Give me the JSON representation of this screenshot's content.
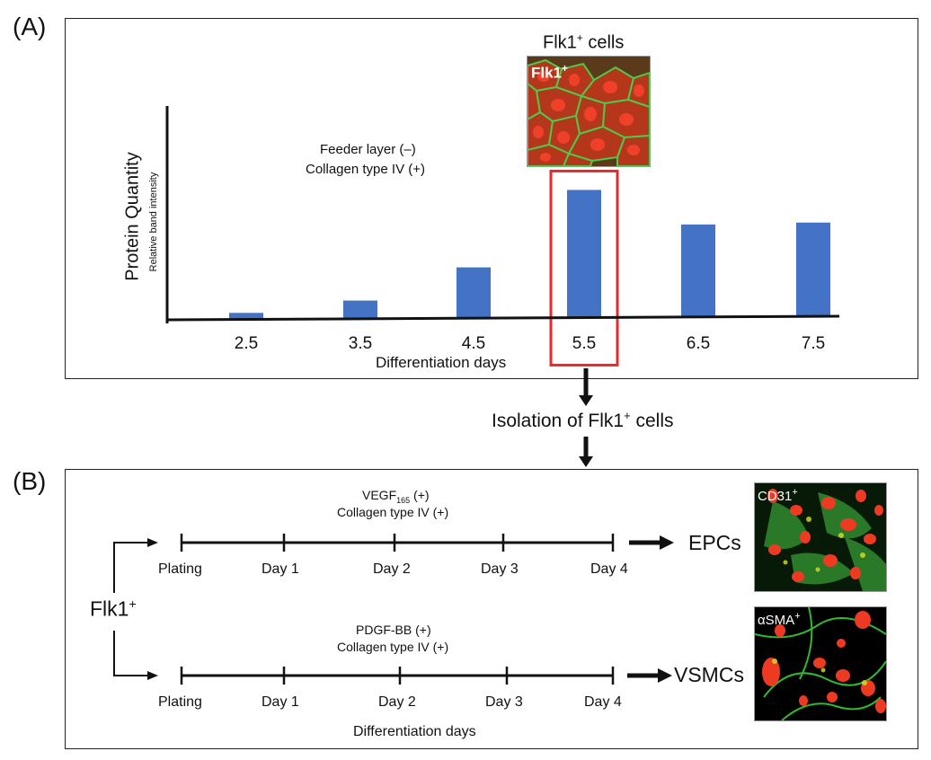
{
  "panel_a": {
    "letter": "(A)",
    "micrograph_title": "Flk1",
    "micrograph_title_sup": "+",
    "micrograph_title_tail": " cells",
    "micrograph_label": "Flk1",
    "micrograph_label_sup": "+",
    "condition_line1": "Feeder layer (–)",
    "condition_line2": "Collagen type IV (+)",
    "ylabel": "Protein Quantity",
    "ylabel_sub": "Relative band intensity",
    "xlabel": "Differentiation days"
  },
  "chart_data": {
    "type": "bar",
    "title": "",
    "xlabel": "Differentiation days",
    "ylabel": "Protein Quantity",
    "ylabel_sub": "Relative band intensity",
    "categories": [
      "2.5",
      "3.5",
      "4.5",
      "5.5",
      "6.5",
      "7.5"
    ],
    "values": [
      0.05,
      0.14,
      0.39,
      0.98,
      0.71,
      0.72
    ],
    "ylim": [
      0,
      1.0
    ],
    "highlight_category": "5.5",
    "bar_color": "#4472C4",
    "highlight_color": "#E8292B"
  },
  "isolation": {
    "label": "Isolation of Flk1",
    "sup": "+",
    "tail": " cells"
  },
  "panel_b": {
    "letter": "(B)",
    "source_label": "Flk1",
    "source_sup": "+",
    "top": {
      "cond1_pre": "VEGF",
      "cond1_sub": "165",
      "cond1_post": " (+)",
      "cond2": "Collagen type IV (+)",
      "ticks": [
        "Plating",
        "Day 1",
        "Day 2",
        "Day 3",
        "Day 4"
      ],
      "result": "EPCs",
      "micro_label": "CD31",
      "micro_sup": "+"
    },
    "bottom": {
      "cond1": "PDGF-BB (+)",
      "cond2": "Collagen type IV (+)",
      "ticks": [
        "Plating",
        "Day 1",
        "Day 2",
        "Day 3",
        "Day 4"
      ],
      "result": "VSMCs",
      "micro_label": "αSMA",
      "micro_sup": "+"
    },
    "xlabel": "Differentiation days"
  }
}
